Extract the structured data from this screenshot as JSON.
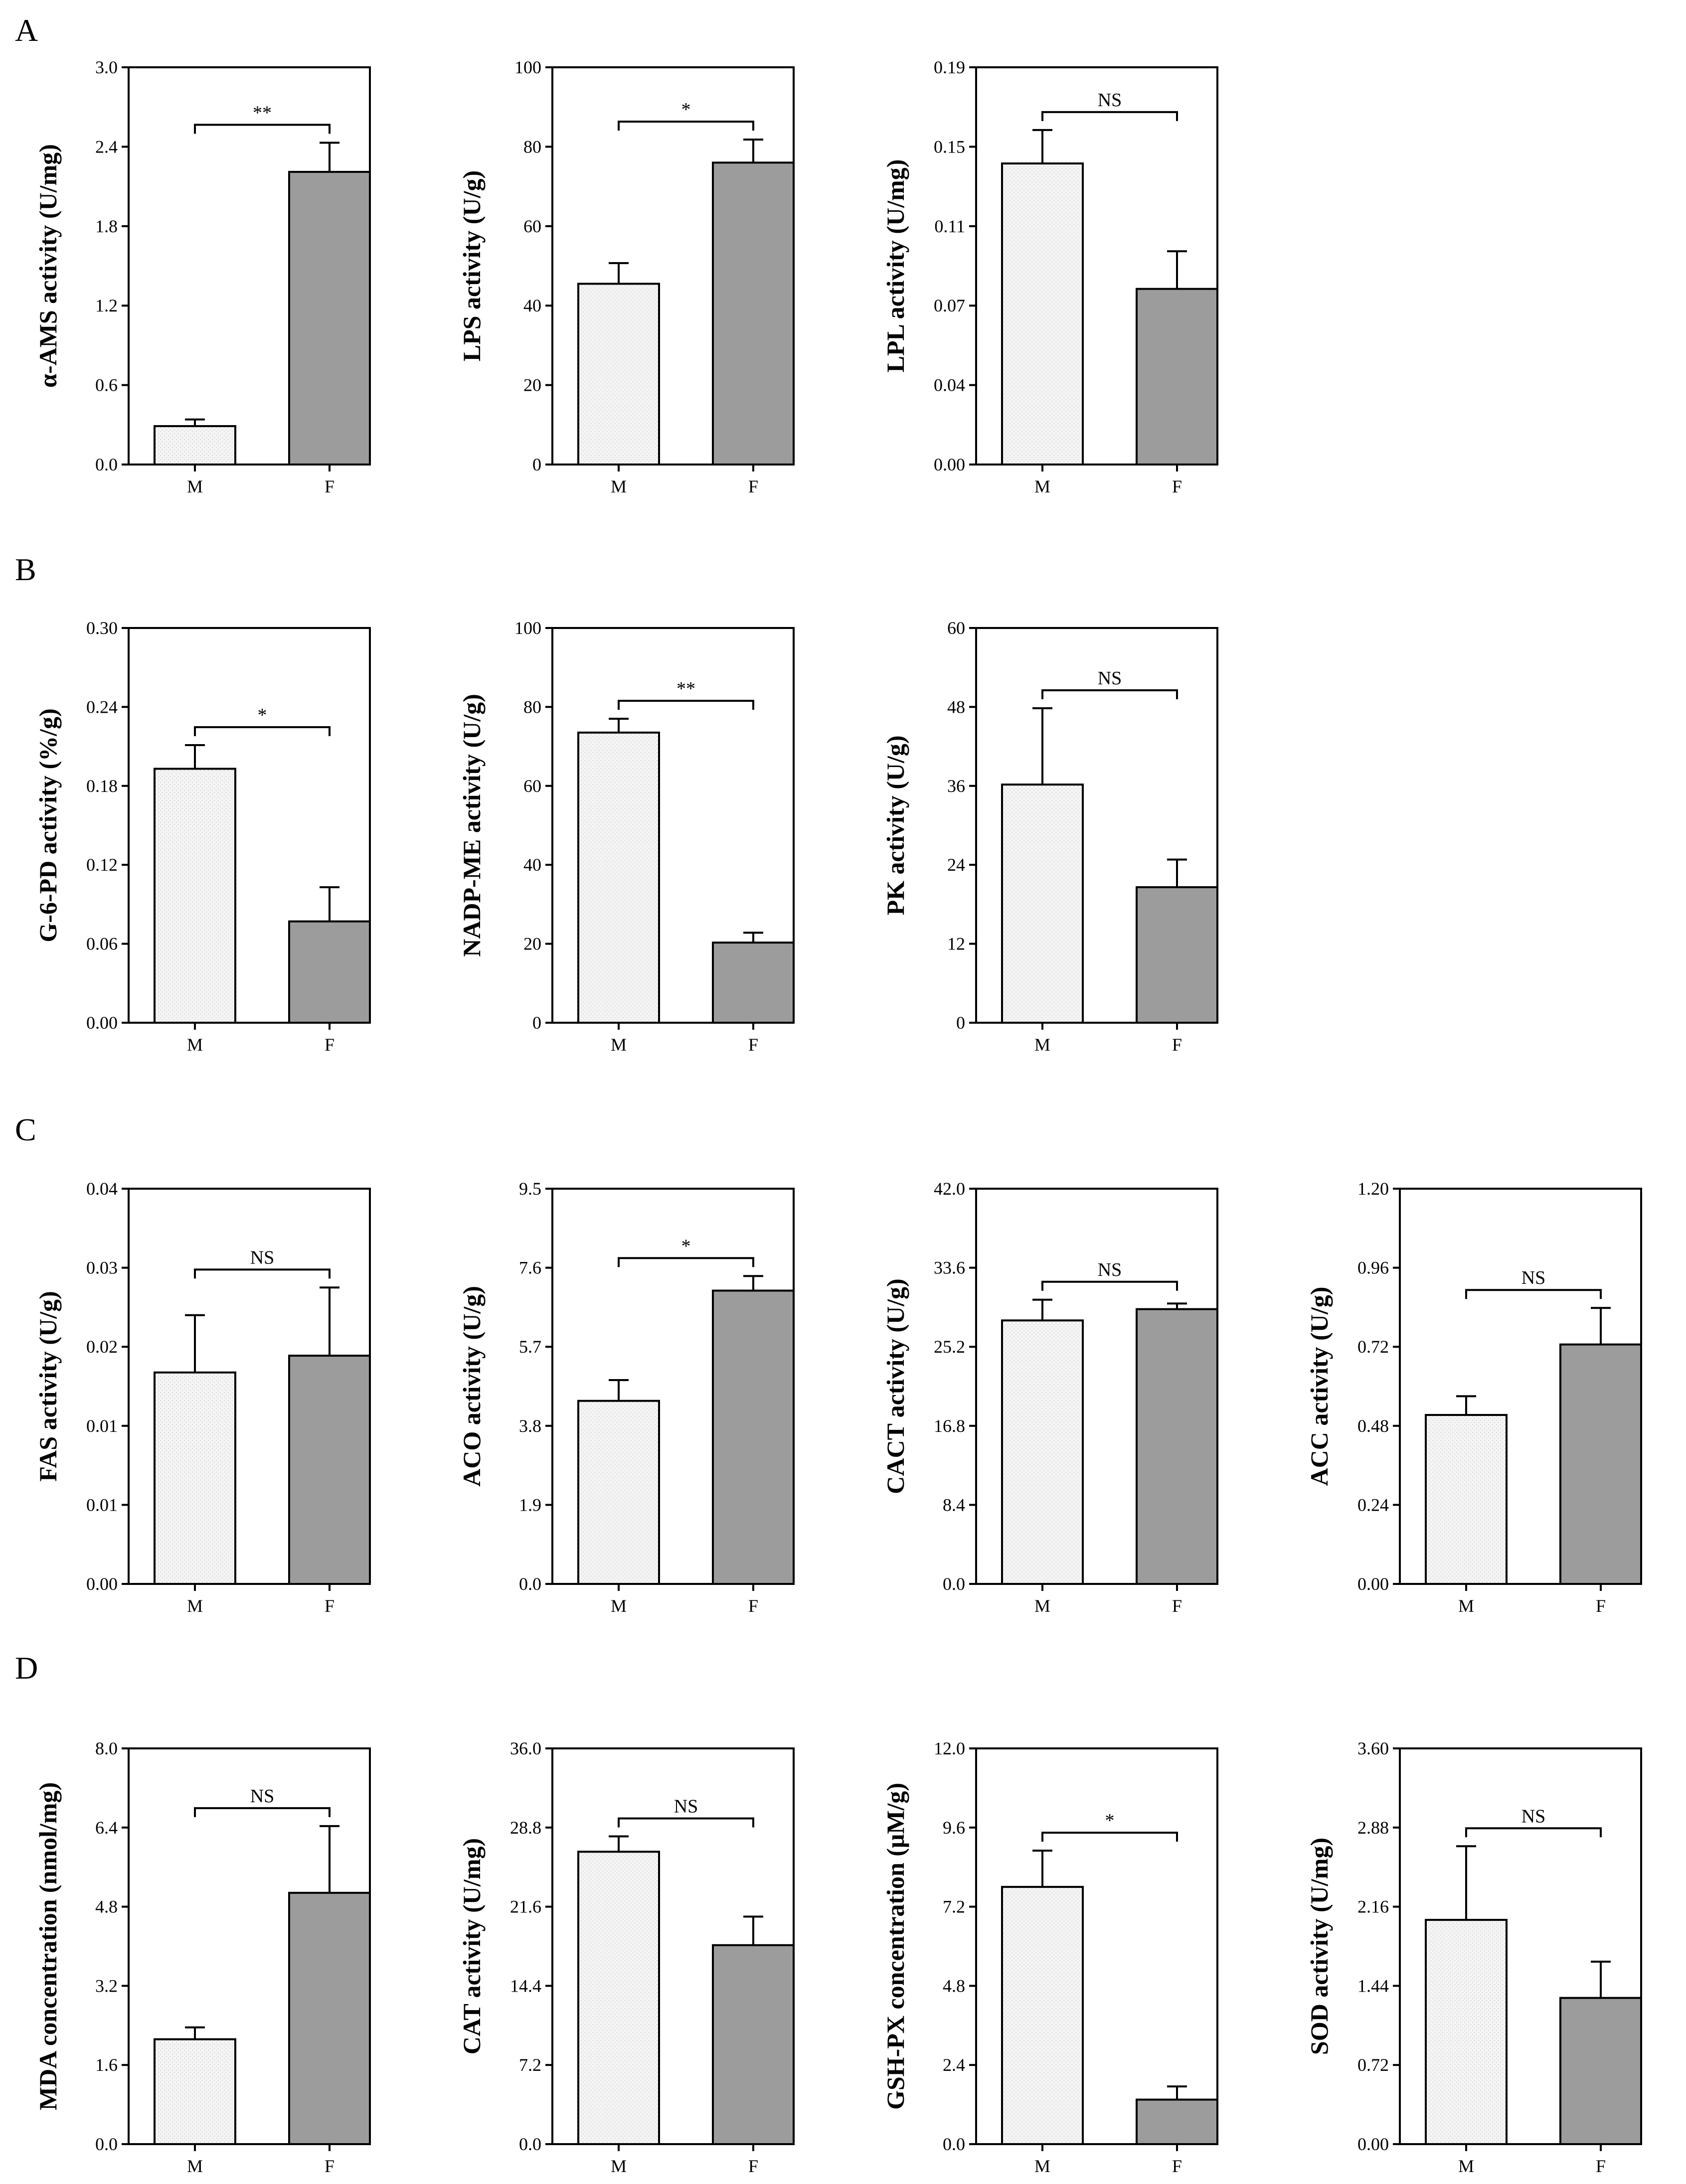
{
  "panels": [
    {
      "letter": "A"
    },
    {
      "letter": "B"
    },
    {
      "letter": "C"
    },
    {
      "letter": "D"
    }
  ],
  "colors": {
    "male_fill": "#f1f1f1",
    "female_fill": "#9c9c9c",
    "axis": "#000000"
  },
  "chart_data": [
    {
      "panel": "A",
      "type": "bar",
      "categories": [
        "M",
        "F"
      ],
      "ylabel": "α-AMS activity (U/mg)",
      "ylim": [
        0,
        3.0
      ],
      "yticks": [
        "0.0",
        "0.6",
        "1.2",
        "1.8",
        "2.4",
        "3.0"
      ],
      "values": [
        0.29,
        2.21
      ],
      "errors": [
        0.05,
        0.22
      ],
      "significance": "**"
    },
    {
      "panel": "A",
      "type": "bar",
      "categories": [
        "M",
        "F"
      ],
      "ylabel": "LPS activity (U/g)",
      "ylim": [
        0,
        100
      ],
      "yticks": [
        "0",
        "20",
        "40",
        "60",
        "80",
        "100"
      ],
      "values": [
        45.5,
        76
      ],
      "errors": [
        5.2,
        5.8
      ],
      "significance": "*"
    },
    {
      "panel": "A",
      "type": "bar",
      "categories": [
        "M",
        "F"
      ],
      "ylabel": "LPL activity (U/mg)",
      "ylim": [
        0,
        0.19
      ],
      "yticks": [
        "0.00",
        "0.04",
        "0.07",
        "0.11",
        "0.15",
        "0.19"
      ],
      "values": [
        0.144,
        0.084
      ],
      "errors": [
        0.016,
        0.018
      ],
      "significance": "NS"
    },
    {
      "panel": "B",
      "type": "bar",
      "categories": [
        "M",
        "F"
      ],
      "ylabel": "G-6-PD activity (%/g)",
      "ylim": [
        0,
        0.3
      ],
      "yticks": [
        "0.00",
        "0.06",
        "0.12",
        "0.18",
        "0.24",
        "0.30"
      ],
      "values": [
        0.193,
        0.077
      ],
      "errors": [
        0.018,
        0.026
      ],
      "significance": "*"
    },
    {
      "panel": "B",
      "type": "bar",
      "categories": [
        "M",
        "F"
      ],
      "ylabel": "NADP-ME activity (U/g)",
      "ylim": [
        0,
        100
      ],
      "yticks": [
        "0",
        "20",
        "40",
        "60",
        "80",
        "100"
      ],
      "values": [
        73.5,
        20.3
      ],
      "errors": [
        3.5,
        2.5
      ],
      "significance": "**"
    },
    {
      "panel": "B",
      "type": "bar",
      "categories": [
        "M",
        "F"
      ],
      "ylabel": "PK activity (U/g)",
      "ylim": [
        0,
        60
      ],
      "yticks": [
        "0",
        "12",
        "24",
        "36",
        "48",
        "60"
      ],
      "values": [
        36.2,
        20.6
      ],
      "errors": [
        11.6,
        4.2
      ],
      "significance": "NS"
    },
    {
      "panel": "C",
      "type": "bar",
      "categories": [
        "M",
        "F"
      ],
      "ylabel": "FAS activity (U/g)",
      "ylim": [
        0,
        0.04
      ],
      "yticks": [
        "0.00",
        "0.01",
        "0.01",
        "0.02",
        "0.03",
        "0.04"
      ],
      "values": [
        0.0214,
        0.0231
      ],
      "errors": [
        0.0058,
        0.0069
      ],
      "significance": "NS"
    },
    {
      "panel": "C",
      "type": "bar",
      "categories": [
        "M",
        "F"
      ],
      "ylabel": "ACO activity (U/g)",
      "ylim": [
        0,
        9.5
      ],
      "yticks": [
        "0.0",
        "1.9",
        "3.8",
        "5.7",
        "7.6",
        "9.5"
      ],
      "values": [
        4.4,
        7.05
      ],
      "errors": [
        0.5,
        0.35
      ],
      "significance": "*"
    },
    {
      "panel": "C",
      "type": "bar",
      "categories": [
        "M",
        "F"
      ],
      "ylabel": "CACT activity (U/g)",
      "ylim": [
        0,
        42.0
      ],
      "yticks": [
        "0.0",
        "8.4",
        "16.8",
        "25.2",
        "33.6",
        "42.0"
      ],
      "values": [
        28.0,
        29.2
      ],
      "errors": [
        2.2,
        0.6
      ],
      "significance": "NS"
    },
    {
      "panel": "C",
      "type": "bar",
      "categories": [
        "M",
        "F"
      ],
      "ylabel": "ACC activity (U/g)",
      "ylim": [
        0,
        1.2
      ],
      "yticks": [
        "0.00",
        "0.24",
        "0.48",
        "0.72",
        "0.96",
        "1.20"
      ],
      "values": [
        0.513,
        0.727
      ],
      "errors": [
        0.057,
        0.111
      ],
      "significance": "NS"
    },
    {
      "panel": "D",
      "type": "bar",
      "categories": [
        "M",
        "F"
      ],
      "ylabel": "MDA concentration (nmol/mg)",
      "ylim": [
        0,
        8.0
      ],
      "yticks": [
        "0.0",
        "1.6",
        "3.2",
        "4.8",
        "6.4",
        "8.0"
      ],
      "values": [
        2.12,
        5.08
      ],
      "errors": [
        0.24,
        1.35
      ],
      "significance": "NS"
    },
    {
      "panel": "D",
      "type": "bar",
      "categories": [
        "M",
        "F"
      ],
      "ylabel": "CAT activity (U/mg)",
      "ylim": [
        0,
        36.0
      ],
      "yticks": [
        "0.0",
        "7.2",
        "14.4",
        "21.6",
        "28.8",
        "36.0"
      ],
      "values": [
        26.6,
        18.1
      ],
      "errors": [
        1.4,
        2.6
      ],
      "significance": "NS"
    },
    {
      "panel": "D",
      "type": "bar",
      "categories": [
        "M",
        "F"
      ],
      "ylabel": "GSH-PX concentration (μM/g)",
      "ylim": [
        0,
        12.0
      ],
      "yticks": [
        "0.0",
        "2.4",
        "4.8",
        "7.2",
        "9.6",
        "12.0"
      ],
      "values": [
        7.8,
        1.35
      ],
      "errors": [
        1.1,
        0.4
      ],
      "significance": "*"
    },
    {
      "panel": "D",
      "type": "bar",
      "categories": [
        "M",
        "F"
      ],
      "ylabel": "SOD activity (U/mg)",
      "ylim": [
        0,
        3.6
      ],
      "yticks": [
        "0.00",
        "0.72",
        "1.44",
        "2.16",
        "2.88",
        "3.60"
      ],
      "values": [
        2.04,
        1.33
      ],
      "errors": [
        0.67,
        0.33
      ],
      "significance": "NS"
    }
  ]
}
